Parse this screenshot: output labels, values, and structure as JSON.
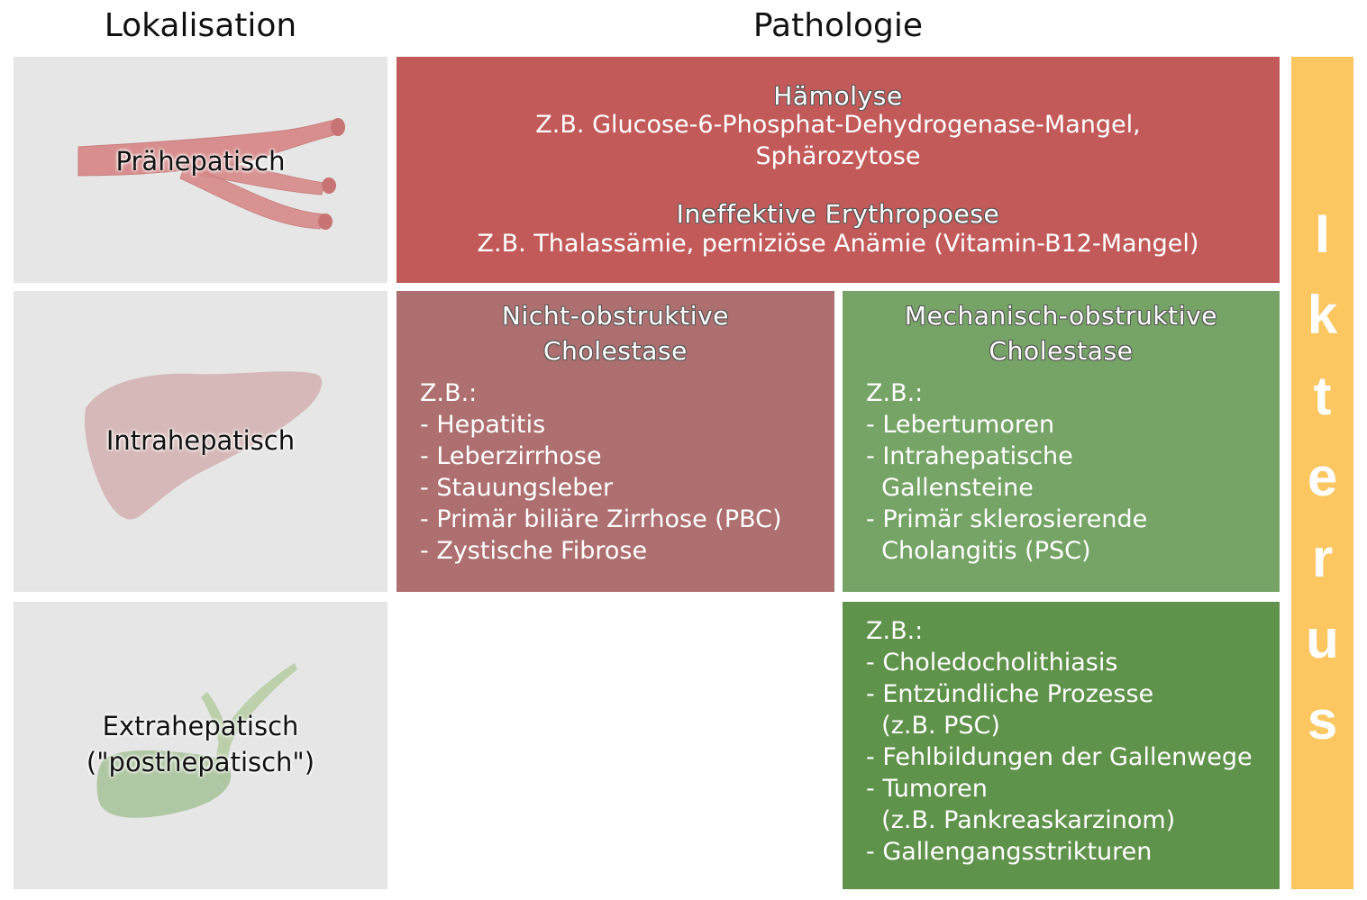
{
  "headers": {
    "left": "Lokalisation",
    "right": "Pathologie"
  },
  "rows": {
    "prehepatic": "Prähepatisch",
    "intrahepatic": "Intrahepatisch",
    "extrahepatic_line1": "Extrahepatisch",
    "extrahepatic_line2": "(\"posthepatisch\")"
  },
  "prehepatic_box": {
    "title1": "Hämolyse",
    "line1": "Z.B. Glucose-6-Phosphat-Dehydrogenase-Mangel,",
    "line2": "Sphärozytose",
    "title2": "Ineffektive Erythropoese",
    "line3": "Z.B. Thalassämie, perniziöse Anämie (Vitamin-B12-Mangel)"
  },
  "nonobstructive": {
    "title_line1": "Nicht-obstruktive",
    "title_line2": "Cholestase",
    "items": [
      "Z.B.:",
      "- Hepatitis",
      "- Leberzirrhose",
      "- Stauungsleber",
      "- Primär biliäre Zirrhose (PBC)",
      "- Zystische Fibrose"
    ]
  },
  "obstructive": {
    "title_line1": "Mechanisch-obstruktive",
    "title_line2": "Cholestase",
    "items": [
      "Z.B.:",
      "- Lebertumoren",
      "- Intrahepatische",
      "  Gallensteine",
      "- Primär sklerosierende",
      "  Cholangitis (PSC)"
    ]
  },
  "extrahepatic_box": {
    "items": [
      "Z.B.:",
      "- Choledocholithiasis",
      "- Entzündliche Prozesse",
      "  (z.B. PSC)",
      "- Fehlbildungen der Gallenwege",
      "- Tumoren",
      "  (z.B. Pankreaskarzinom)",
      "- Gallengangsstrikturen"
    ]
  },
  "ikterus_letters": [
    "I",
    "k",
    "t",
    "e",
    "r",
    "u",
    "s"
  ],
  "colors": {
    "red": "#c25a5a",
    "muted_red": "#ad6f6f",
    "light_green": "#76a366",
    "dark_green": "#5f924a",
    "yellow": "#fcc660",
    "grey": "#e6e6e6"
  }
}
